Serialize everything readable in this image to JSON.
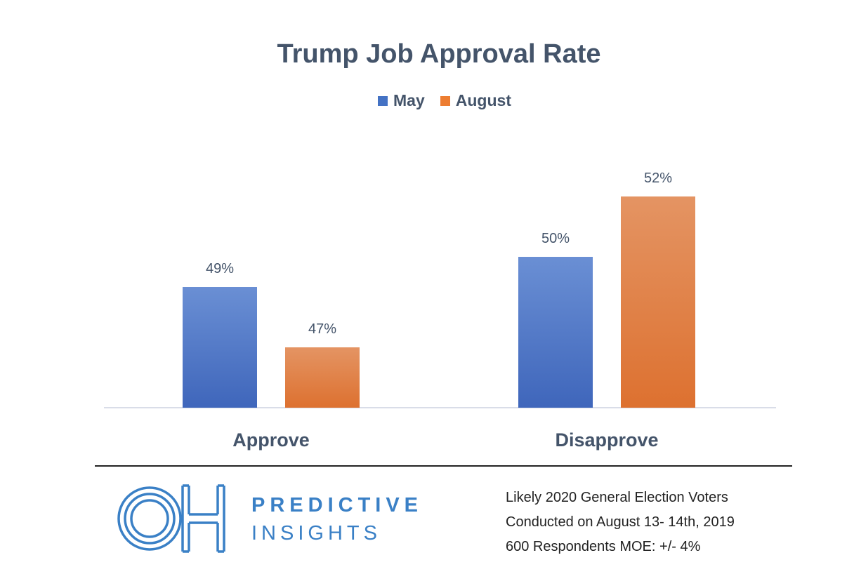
{
  "chart_data": {
    "type": "bar",
    "title": "Trump Job Approval Rate",
    "categories": [
      "Approve",
      "Disapprove"
    ],
    "series": [
      {
        "name": "May",
        "values": [
          49,
          50
        ],
        "color": "#4472c4"
      },
      {
        "name": "August",
        "values": [
          47,
          52
        ],
        "color": "#ed7d31"
      }
    ],
    "data_labels": [
      [
        "49%",
        "50%"
      ],
      [
        "47%",
        "52%"
      ]
    ],
    "ylim": [
      45,
      53
    ],
    "grid": false,
    "legend": "top",
    "xlabel": "",
    "ylabel": ""
  },
  "footer": {
    "logo_text": "OH",
    "brand_line1": "PREDICTIVE",
    "brand_line2": "INSIGHTS",
    "notes": [
      "Likely 2020 General Election Voters",
      "Conducted on August 13- 14th, 2019",
      "600 Respondents  MOE: +/- 4%"
    ],
    "brand_color": "#3a80c6"
  }
}
